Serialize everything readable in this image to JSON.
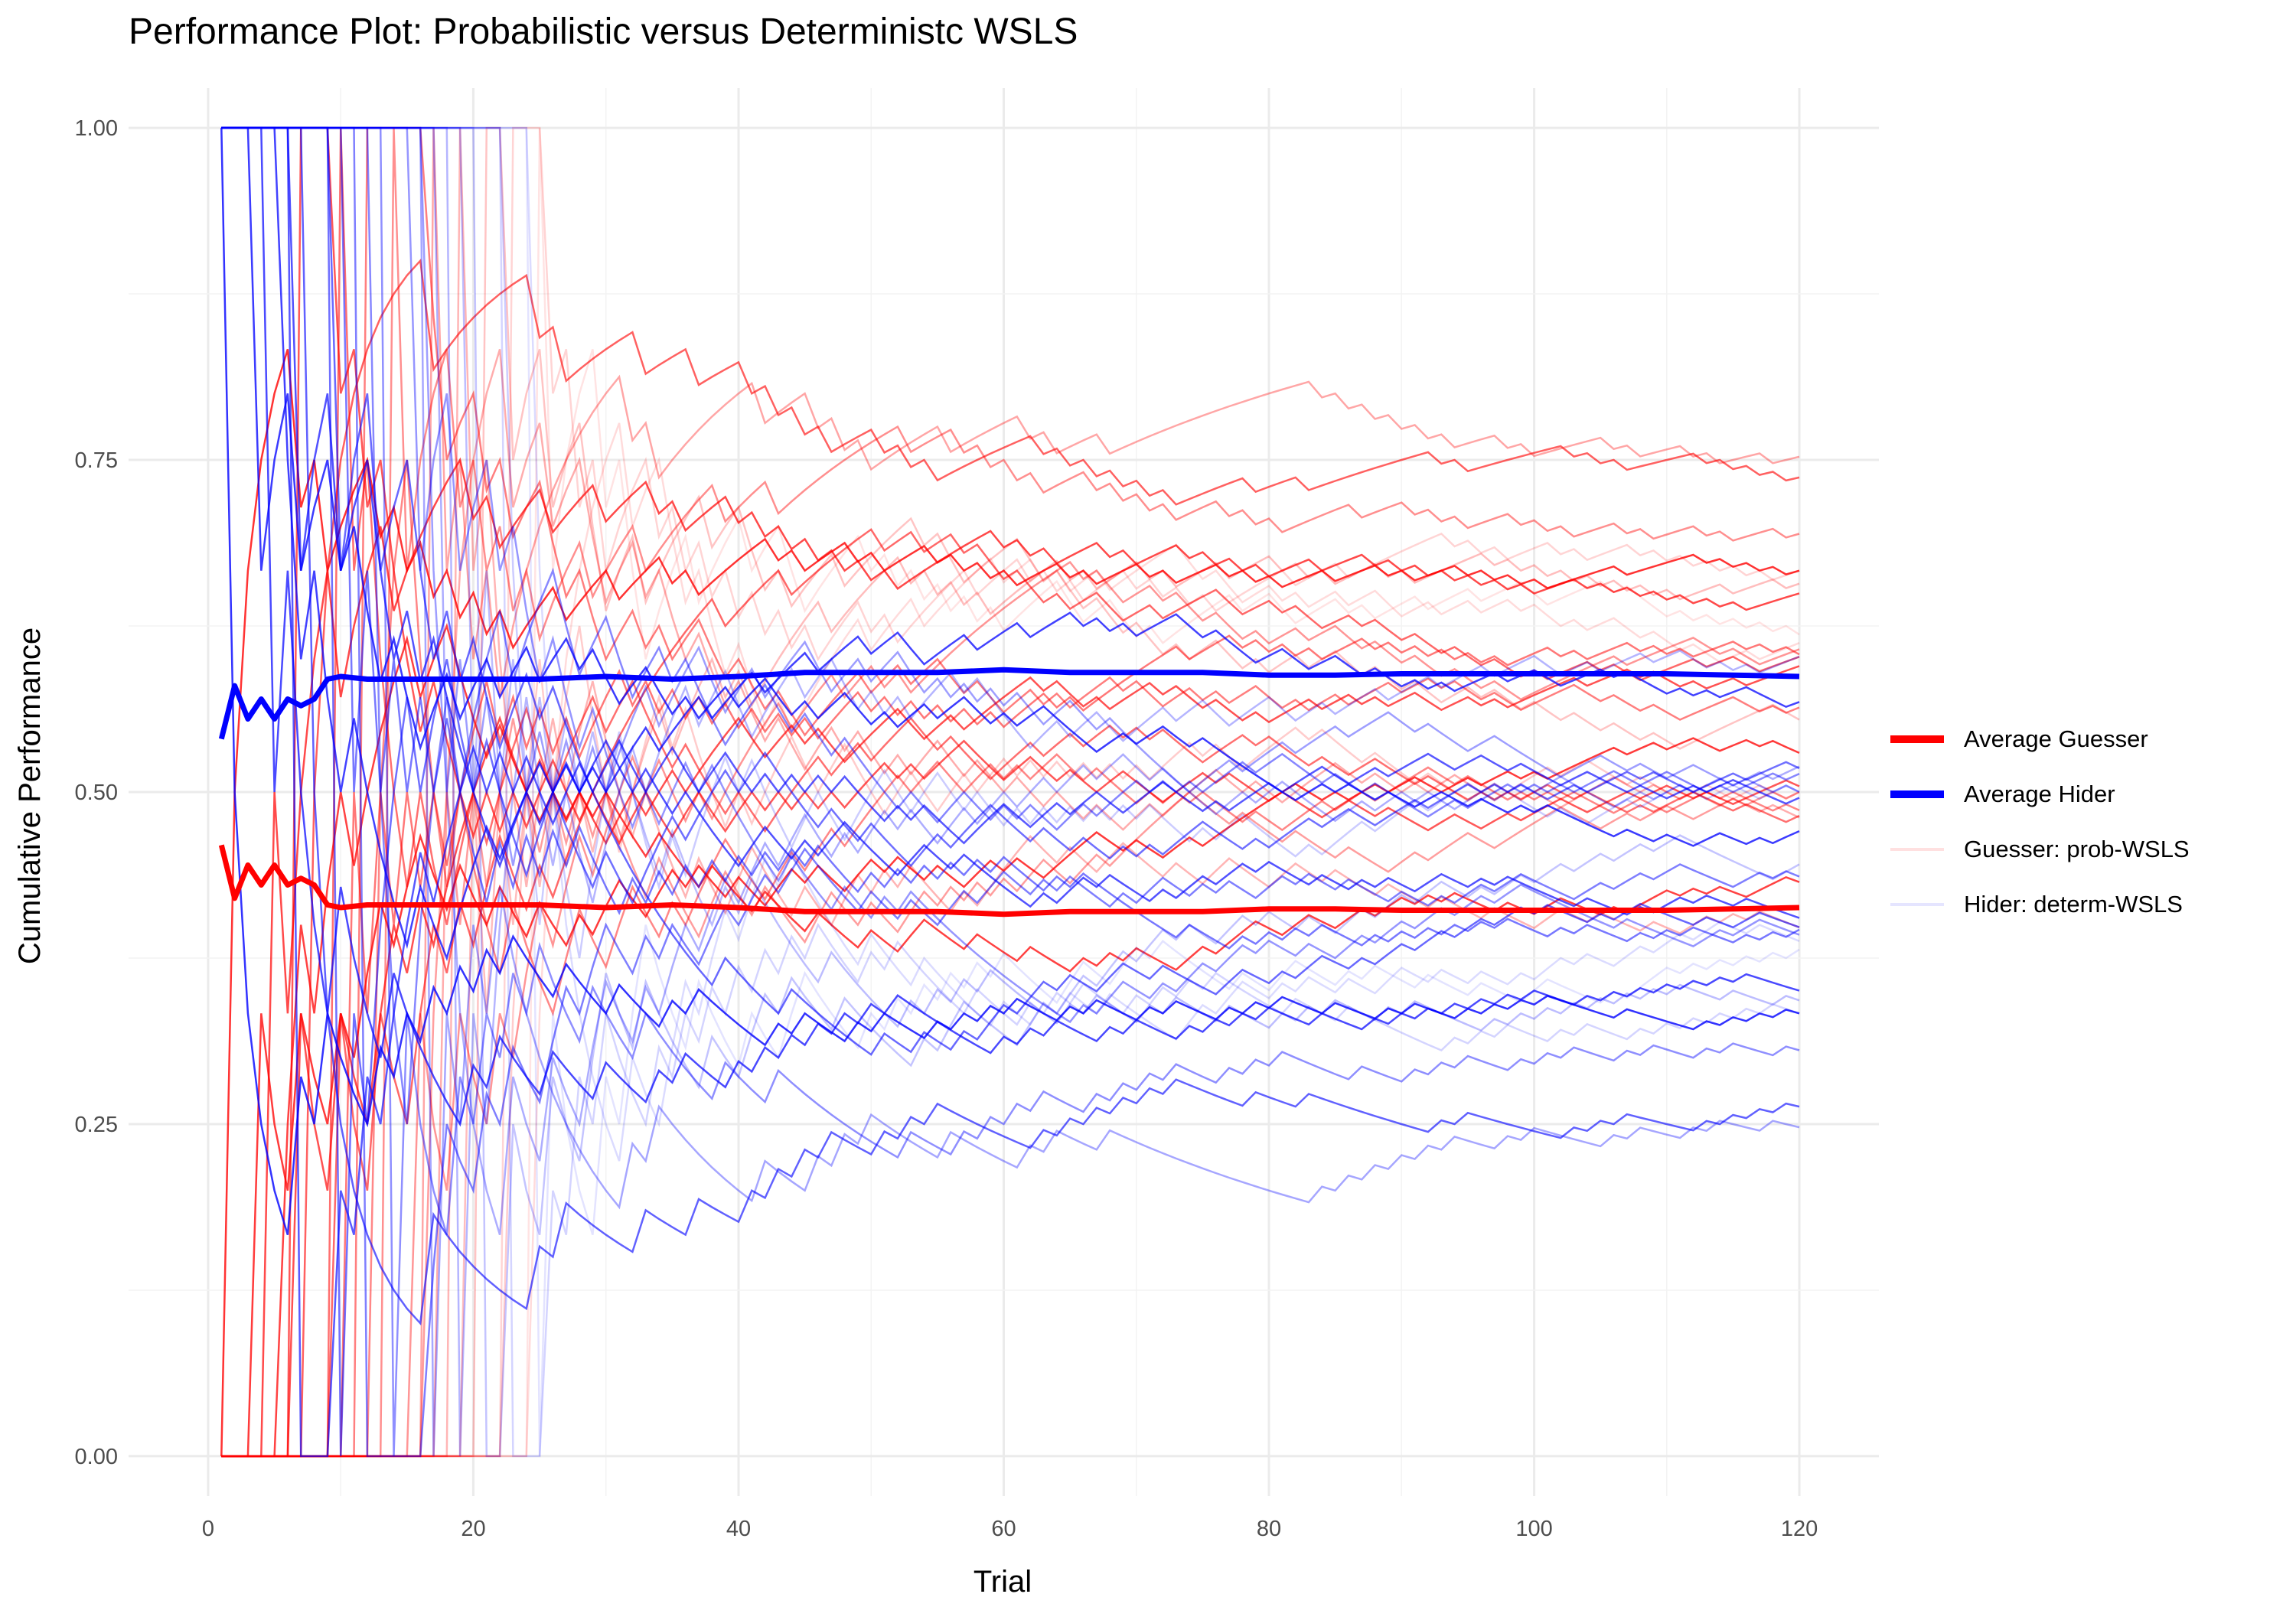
{
  "chart_data": {
    "type": "line",
    "title": "Performance Plot: Probabilistic versus Deterministc WSLS",
    "xlabel": "Trial",
    "ylabel": "Cumulative Performance",
    "xlim": [
      -6,
      126
    ],
    "ylim": [
      -0.03,
      1.03
    ],
    "x_ticks": [
      0,
      20,
      40,
      60,
      80,
      100,
      120
    ],
    "x_tick_labels": [
      "0",
      "20",
      "40",
      "60",
      "80",
      "100",
      "120"
    ],
    "y_ticks": [
      0,
      0.25,
      0.5,
      0.75,
      1.0
    ],
    "y_tick_labels": [
      "0.00",
      "0.25",
      "0.50",
      "0.75",
      "1.00"
    ],
    "grid": true,
    "legend_position": "right",
    "series": [
      {
        "name": "Average Guesser",
        "color": "#ff0000",
        "x": [
          1,
          2,
          3,
          4,
          5,
          6,
          7,
          8,
          9,
          10,
          12,
          15,
          20,
          25,
          30,
          35,
          40,
          45,
          50,
          55,
          60,
          65,
          70,
          75,
          80,
          85,
          90,
          95,
          100,
          105,
          110,
          115,
          120
        ],
        "values": [
          0.46,
          0.42,
          0.445,
          0.43,
          0.445,
          0.43,
          0.435,
          0.43,
          0.415,
          0.413,
          0.415,
          0.415,
          0.415,
          0.415,
          0.413,
          0.415,
          0.413,
          0.41,
          0.41,
          0.41,
          0.408,
          0.41,
          0.41,
          0.41,
          0.412,
          0.412,
          0.411,
          0.411,
          0.411,
          0.411,
          0.411,
          0.412,
          0.413
        ]
      },
      {
        "name": "Average Hider",
        "color": "#0000ff",
        "x": [
          1,
          2,
          3,
          4,
          5,
          6,
          7,
          8,
          9,
          10,
          12,
          15,
          20,
          25,
          30,
          35,
          40,
          45,
          50,
          55,
          60,
          65,
          70,
          75,
          80,
          85,
          90,
          95,
          100,
          105,
          110,
          115,
          120
        ],
        "values": [
          0.54,
          0.58,
          0.555,
          0.57,
          0.555,
          0.57,
          0.565,
          0.57,
          0.585,
          0.587,
          0.585,
          0.585,
          0.585,
          0.585,
          0.587,
          0.585,
          0.587,
          0.59,
          0.59,
          0.59,
          0.592,
          0.59,
          0.59,
          0.59,
          0.588,
          0.588,
          0.589,
          0.589,
          0.589,
          0.589,
          0.589,
          0.588,
          0.587
        ]
      },
      {
        "name": "Guesser: prob-WSLS",
        "color": "#ff0000",
        "values": []
      },
      {
        "name": "Hider: determ-WSLS",
        "color": "#0000ff",
        "values": []
      }
    ],
    "sim_trials": 120,
    "sim_agents": 24
  },
  "legend": {
    "items": [
      {
        "label": "Average Guesser",
        "color": "#ff0000",
        "style": "thick"
      },
      {
        "label": "Average Hider",
        "color": "#0000ff",
        "style": "thick"
      },
      {
        "label": "Guesser: prob-WSLS",
        "color": "#ff0000",
        "style": "faint"
      },
      {
        "label": "Hider: determ-WSLS",
        "color": "#0000ff",
        "style": "faint"
      }
    ]
  }
}
